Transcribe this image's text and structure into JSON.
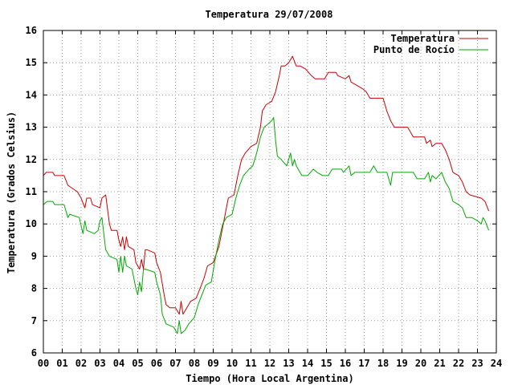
{
  "chart_data": {
    "type": "line",
    "title": "Temperatura 29/07/2008",
    "xlabel": "Tiempo (Hora Local Argentina)",
    "ylabel": "Temperatura (Grados Celsius)",
    "xlim": [
      0,
      24
    ],
    "ylim": [
      6,
      16
    ],
    "x_ticks": [
      "00",
      "01",
      "02",
      "03",
      "04",
      "05",
      "06",
      "07",
      "08",
      "09",
      "10",
      "11",
      "12",
      "13",
      "14",
      "15",
      "16",
      "17",
      "18",
      "19",
      "20",
      "21",
      "22",
      "23",
      "24"
    ],
    "y_ticks": [
      "6",
      "7",
      "8",
      "9",
      "10",
      "11",
      "12",
      "13",
      "14",
      "15",
      "16"
    ],
    "grid": true,
    "legend_position": "top-right",
    "series": [
      {
        "name": "Temperatura",
        "color": "#cc0000",
        "points": [
          [
            0.0,
            11.5
          ],
          [
            0.15,
            11.6
          ],
          [
            0.5,
            11.6
          ],
          [
            0.6,
            11.5
          ],
          [
            1.1,
            11.5
          ],
          [
            1.3,
            11.2
          ],
          [
            1.8,
            11.0
          ],
          [
            2.0,
            10.8
          ],
          [
            2.2,
            10.5
          ],
          [
            2.3,
            10.8
          ],
          [
            2.5,
            10.8
          ],
          [
            2.6,
            10.6
          ],
          [
            3.0,
            10.5
          ],
          [
            3.1,
            10.8
          ],
          [
            3.3,
            10.9
          ],
          [
            3.5,
            10.0
          ],
          [
            3.6,
            9.8
          ],
          [
            3.9,
            9.8
          ],
          [
            4.0,
            9.5
          ],
          [
            4.1,
            9.3
          ],
          [
            4.2,
            9.6
          ],
          [
            4.3,
            9.2
          ],
          [
            4.4,
            9.6
          ],
          [
            4.5,
            9.3
          ],
          [
            4.8,
            9.2
          ],
          [
            4.9,
            8.8
          ],
          [
            5.1,
            8.6
          ],
          [
            5.2,
            8.9
          ],
          [
            5.3,
            8.6
          ],
          [
            5.4,
            9.2
          ],
          [
            5.5,
            9.2
          ],
          [
            5.9,
            9.1
          ],
          [
            6.0,
            8.8
          ],
          [
            6.2,
            8.5
          ],
          [
            6.4,
            7.8
          ],
          [
            6.5,
            7.5
          ],
          [
            6.7,
            7.4
          ],
          [
            7.0,
            7.4
          ],
          [
            7.2,
            7.2
          ],
          [
            7.3,
            7.6
          ],
          [
            7.4,
            7.2
          ],
          [
            7.6,
            7.4
          ],
          [
            7.8,
            7.6
          ],
          [
            8.1,
            7.7
          ],
          [
            8.3,
            8.0
          ],
          [
            8.5,
            8.3
          ],
          [
            8.7,
            8.7
          ],
          [
            9.0,
            8.8
          ],
          [
            9.3,
            9.3
          ],
          [
            9.5,
            9.9
          ],
          [
            9.7,
            10.5
          ],
          [
            9.8,
            10.8
          ],
          [
            10.1,
            10.9
          ],
          [
            10.3,
            11.5
          ],
          [
            10.5,
            12.0
          ],
          [
            10.7,
            12.2
          ],
          [
            11.0,
            12.4
          ],
          [
            11.3,
            12.5
          ],
          [
            11.5,
            13.0
          ],
          [
            11.6,
            13.5
          ],
          [
            11.8,
            13.7
          ],
          [
            12.1,
            13.8
          ],
          [
            12.3,
            14.1
          ],
          [
            12.5,
            14.6
          ],
          [
            12.6,
            14.9
          ],
          [
            12.8,
            14.9
          ],
          [
            13.0,
            15.0
          ],
          [
            13.1,
            15.1
          ],
          [
            13.2,
            15.2
          ],
          [
            13.4,
            14.9
          ],
          [
            13.6,
            14.9
          ],
          [
            13.9,
            14.8
          ],
          [
            14.2,
            14.6
          ],
          [
            14.4,
            14.5
          ],
          [
            14.9,
            14.5
          ],
          [
            15.1,
            14.7
          ],
          [
            15.5,
            14.7
          ],
          [
            15.6,
            14.6
          ],
          [
            16.0,
            14.5
          ],
          [
            16.2,
            14.6
          ],
          [
            16.3,
            14.4
          ],
          [
            16.6,
            14.3
          ],
          [
            16.9,
            14.2
          ],
          [
            17.1,
            14.1
          ],
          [
            17.3,
            13.9
          ],
          [
            18.0,
            13.9
          ],
          [
            18.2,
            13.5
          ],
          [
            18.4,
            13.2
          ],
          [
            18.6,
            13.0
          ],
          [
            19.3,
            13.0
          ],
          [
            19.6,
            12.7
          ],
          [
            20.2,
            12.7
          ],
          [
            20.3,
            12.5
          ],
          [
            20.5,
            12.6
          ],
          [
            20.6,
            12.4
          ],
          [
            20.8,
            12.5
          ],
          [
            21.1,
            12.5
          ],
          [
            21.3,
            12.3
          ],
          [
            21.5,
            12.0
          ],
          [
            21.7,
            11.6
          ],
          [
            22.0,
            11.5
          ],
          [
            22.2,
            11.3
          ],
          [
            22.4,
            11.0
          ],
          [
            22.6,
            10.9
          ],
          [
            23.2,
            10.8
          ],
          [
            23.4,
            10.7
          ],
          [
            23.6,
            10.4
          ]
        ]
      },
      {
        "name": "Punto de Rocío",
        "color": "#00aa00",
        "points": [
          [
            0.0,
            10.6
          ],
          [
            0.2,
            10.7
          ],
          [
            0.5,
            10.7
          ],
          [
            0.6,
            10.6
          ],
          [
            1.1,
            10.6
          ],
          [
            1.3,
            10.2
          ],
          [
            1.4,
            10.3
          ],
          [
            1.9,
            10.2
          ],
          [
            2.1,
            9.7
          ],
          [
            2.2,
            10.1
          ],
          [
            2.3,
            9.8
          ],
          [
            2.7,
            9.7
          ],
          [
            2.9,
            9.8
          ],
          [
            3.0,
            10.1
          ],
          [
            3.1,
            10.2
          ],
          [
            3.3,
            9.2
          ],
          [
            3.5,
            9.0
          ],
          [
            3.9,
            8.9
          ],
          [
            4.0,
            8.5
          ],
          [
            4.1,
            9.0
          ],
          [
            4.2,
            8.5
          ],
          [
            4.3,
            9.0
          ],
          [
            4.4,
            8.7
          ],
          [
            4.7,
            8.6
          ],
          [
            4.9,
            8.0
          ],
          [
            5.0,
            7.8
          ],
          [
            5.1,
            8.2
          ],
          [
            5.2,
            7.9
          ],
          [
            5.3,
            8.6
          ],
          [
            5.4,
            8.6
          ],
          [
            5.9,
            8.5
          ],
          [
            6.0,
            8.2
          ],
          [
            6.2,
            7.8
          ],
          [
            6.3,
            7.2
          ],
          [
            6.5,
            6.9
          ],
          [
            6.9,
            6.8
          ],
          [
            7.1,
            6.6
          ],
          [
            7.2,
            7.0
          ],
          [
            7.3,
            6.6
          ],
          [
            7.5,
            6.7
          ],
          [
            7.7,
            6.9
          ],
          [
            8.0,
            7.1
          ],
          [
            8.2,
            7.5
          ],
          [
            8.4,
            7.8
          ],
          [
            8.6,
            8.1
          ],
          [
            8.9,
            8.2
          ],
          [
            9.1,
            8.9
          ],
          [
            9.3,
            9.5
          ],
          [
            9.5,
            10.0
          ],
          [
            9.7,
            10.2
          ],
          [
            10.0,
            10.3
          ],
          [
            10.2,
            10.8
          ],
          [
            10.4,
            11.2
          ],
          [
            10.6,
            11.5
          ],
          [
            10.9,
            11.7
          ],
          [
            11.1,
            11.8
          ],
          [
            11.3,
            12.2
          ],
          [
            11.5,
            12.7
          ],
          [
            11.7,
            13.0
          ],
          [
            11.9,
            13.1
          ],
          [
            12.1,
            13.2
          ],
          [
            12.2,
            13.3
          ],
          [
            12.3,
            12.6
          ],
          [
            12.4,
            12.1
          ],
          [
            12.6,
            12.0
          ],
          [
            12.9,
            11.8
          ],
          [
            13.1,
            12.2
          ],
          [
            13.2,
            11.8
          ],
          [
            13.3,
            12.0
          ],
          [
            13.4,
            11.8
          ],
          [
            13.5,
            11.7
          ],
          [
            13.7,
            11.5
          ],
          [
            14.0,
            11.5
          ],
          [
            14.3,
            11.7
          ],
          [
            14.5,
            11.6
          ],
          [
            14.8,
            11.5
          ],
          [
            15.1,
            11.5
          ],
          [
            15.3,
            11.7
          ],
          [
            15.8,
            11.7
          ],
          [
            15.9,
            11.6
          ],
          [
            16.2,
            11.8
          ],
          [
            16.3,
            11.5
          ],
          [
            16.5,
            11.6
          ],
          [
            17.3,
            11.6
          ],
          [
            17.5,
            11.8
          ],
          [
            17.7,
            11.6
          ],
          [
            18.2,
            11.6
          ],
          [
            18.4,
            11.2
          ],
          [
            18.5,
            11.6
          ],
          [
            19.6,
            11.6
          ],
          [
            19.8,
            11.4
          ],
          [
            20.2,
            11.4
          ],
          [
            20.4,
            11.6
          ],
          [
            20.5,
            11.3
          ],
          [
            20.6,
            11.5
          ],
          [
            20.8,
            11.4
          ],
          [
            21.1,
            11.6
          ],
          [
            21.3,
            11.3
          ],
          [
            21.5,
            11.1
          ],
          [
            21.7,
            10.7
          ],
          [
            22.0,
            10.6
          ],
          [
            22.2,
            10.5
          ],
          [
            22.4,
            10.2
          ],
          [
            22.7,
            10.2
          ],
          [
            23.0,
            10.1
          ],
          [
            23.2,
            10.0
          ],
          [
            23.3,
            10.2
          ],
          [
            23.4,
            10.1
          ],
          [
            23.6,
            9.8
          ]
        ]
      }
    ]
  }
}
